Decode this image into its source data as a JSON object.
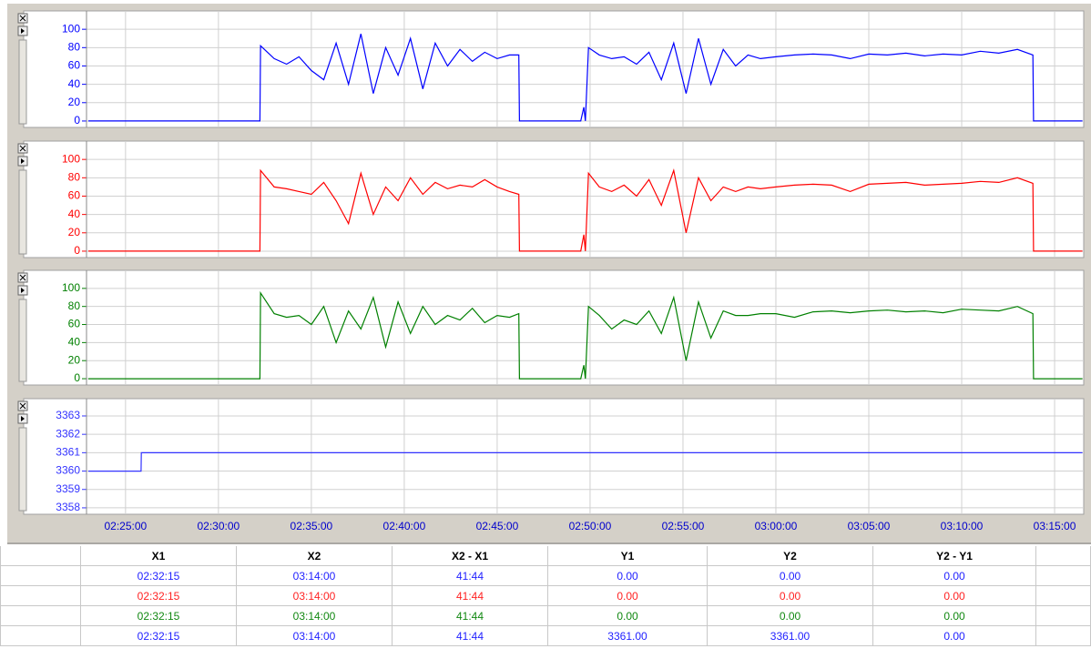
{
  "chart_data": [
    {
      "type": "line",
      "color": "#0000ff",
      "ylim": [
        -7,
        120
      ],
      "yticks": [
        0,
        20,
        40,
        60,
        80,
        100
      ],
      "x": [
        "02:23:00",
        "02:32:14",
        "02:32:16",
        "02:33:00",
        "02:33:40",
        "02:34:20",
        "02:35:00",
        "02:35:40",
        "02:36:20",
        "02:37:00",
        "02:37:40",
        "02:38:20",
        "02:39:00",
        "02:39:40",
        "02:40:20",
        "02:41:00",
        "02:41:40",
        "02:42:20",
        "02:43:00",
        "02:43:40",
        "02:44:20",
        "02:45:00",
        "02:45:40",
        "02:46:10",
        "02:46:12",
        "02:49:30",
        "02:49:40",
        "02:49:45",
        "02:49:55",
        "02:50:30",
        "02:51:10",
        "02:51:50",
        "02:52:30",
        "02:53:10",
        "02:53:50",
        "02:54:30",
        "02:55:10",
        "02:55:50",
        "02:56:30",
        "02:57:10",
        "02:57:50",
        "02:58:30",
        "02:59:10",
        "03:00:00",
        "03:01:00",
        "03:02:00",
        "03:03:00",
        "03:04:00",
        "03:05:00",
        "03:06:00",
        "03:07:00",
        "03:08:00",
        "03:09:00",
        "03:10:00",
        "03:11:00",
        "03:12:00",
        "03:13:00",
        "03:13:50",
        "03:13:52",
        "03:16:30"
      ],
      "values": [
        0,
        0,
        82,
        68,
        62,
        70,
        55,
        45,
        85,
        40,
        95,
        30,
        80,
        50,
        90,
        35,
        85,
        60,
        78,
        65,
        75,
        68,
        72,
        72,
        0,
        0,
        15,
        0,
        80,
        72,
        68,
        70,
        62,
        75,
        45,
        85,
        30,
        90,
        40,
        78,
        60,
        72,
        68,
        70,
        72,
        73,
        72,
        68,
        73,
        72,
        74,
        71,
        73,
        72,
        76,
        74,
        78,
        72,
        0,
        0
      ]
    },
    {
      "type": "line",
      "color": "#ff0000",
      "ylim": [
        -7,
        120
      ],
      "yticks": [
        0,
        20,
        40,
        60,
        80,
        100
      ],
      "x": [
        "02:23:00",
        "02:32:14",
        "02:32:16",
        "02:33:00",
        "02:33:40",
        "02:34:20",
        "02:35:00",
        "02:35:40",
        "02:36:20",
        "02:37:00",
        "02:37:40",
        "02:38:20",
        "02:39:00",
        "02:39:40",
        "02:40:20",
        "02:41:00",
        "02:41:40",
        "02:42:20",
        "02:43:00",
        "02:43:40",
        "02:44:20",
        "02:45:00",
        "02:45:40",
        "02:46:10",
        "02:46:12",
        "02:49:30",
        "02:49:40",
        "02:49:45",
        "02:49:55",
        "02:50:30",
        "02:51:10",
        "02:51:50",
        "02:52:30",
        "02:53:10",
        "02:53:50",
        "02:54:30",
        "02:55:10",
        "02:55:50",
        "02:56:30",
        "02:57:10",
        "02:57:50",
        "02:58:30",
        "02:59:10",
        "03:00:00",
        "03:01:00",
        "03:02:00",
        "03:03:00",
        "03:04:00",
        "03:05:00",
        "03:06:00",
        "03:07:00",
        "03:08:00",
        "03:09:00",
        "03:10:00",
        "03:11:00",
        "03:12:00",
        "03:13:00",
        "03:13:50",
        "03:13:52",
        "03:16:30"
      ],
      "values": [
        0,
        0,
        88,
        70,
        68,
        65,
        62,
        75,
        55,
        30,
        85,
        40,
        70,
        55,
        80,
        62,
        75,
        68,
        72,
        70,
        78,
        70,
        65,
        62,
        0,
        0,
        18,
        0,
        85,
        70,
        65,
        72,
        60,
        78,
        50,
        88,
        20,
        80,
        55,
        70,
        65,
        70,
        68,
        70,
        72,
        73,
        72,
        65,
        73,
        74,
        75,
        72,
        73,
        74,
        76,
        75,
        80,
        74,
        0,
        0
      ]
    },
    {
      "type": "line",
      "color": "#008000",
      "ylim": [
        -7,
        120
      ],
      "yticks": [
        0,
        20,
        40,
        60,
        80,
        100
      ],
      "x": [
        "02:23:00",
        "02:32:14",
        "02:32:16",
        "02:33:00",
        "02:33:40",
        "02:34:20",
        "02:35:00",
        "02:35:40",
        "02:36:20",
        "02:37:00",
        "02:37:40",
        "02:38:20",
        "02:39:00",
        "02:39:40",
        "02:40:20",
        "02:41:00",
        "02:41:40",
        "02:42:20",
        "02:43:00",
        "02:43:40",
        "02:44:20",
        "02:45:00",
        "02:45:40",
        "02:46:10",
        "02:46:12",
        "02:49:30",
        "02:49:40",
        "02:49:45",
        "02:49:55",
        "02:50:30",
        "02:51:10",
        "02:51:50",
        "02:52:30",
        "02:53:10",
        "02:53:50",
        "02:54:30",
        "02:55:10",
        "02:55:50",
        "02:56:30",
        "02:57:10",
        "02:57:50",
        "02:58:30",
        "02:59:10",
        "03:00:00",
        "03:01:00",
        "03:02:00",
        "03:03:00",
        "03:04:00",
        "03:05:00",
        "03:06:00",
        "03:07:00",
        "03:08:00",
        "03:09:00",
        "03:10:00",
        "03:11:00",
        "03:12:00",
        "03:13:00",
        "03:13:50",
        "03:13:52",
        "03:16:30"
      ],
      "values": [
        0,
        0,
        95,
        72,
        68,
        70,
        60,
        80,
        40,
        75,
        55,
        90,
        35,
        85,
        50,
        80,
        60,
        70,
        65,
        78,
        62,
        70,
        68,
        72,
        0,
        0,
        15,
        0,
        80,
        70,
        55,
        65,
        60,
        75,
        50,
        90,
        20,
        85,
        45,
        75,
        70,
        70,
        72,
        72,
        68,
        74,
        75,
        73,
        75,
        76,
        74,
        75,
        73,
        77,
        76,
        75,
        80,
        72,
        0,
        0
      ]
    },
    {
      "type": "line",
      "color": "#3333ff",
      "ylim": [
        3357.65,
        3363.94
      ],
      "yticks": [
        3358,
        3359,
        3360,
        3361,
        3362,
        3363
      ],
      "x": [
        "02:23:00",
        "02:25:50",
        "02:25:51",
        "03:16:30"
      ],
      "values": [
        3360,
        3360,
        3361,
        3361
      ],
      "xlim": [
        "02:22:54",
        "03:16:34"
      ],
      "xticks": [
        "02:25:00",
        "02:30:00",
        "02:35:00",
        "02:40:00",
        "02:45:00",
        "02:50:00",
        "02:55:00",
        "03:00:00",
        "03:05:00",
        "03:10:00",
        "03:15:00"
      ]
    }
  ],
  "table": {
    "headers": [
      "X1",
      "X2",
      "X2 - X1",
      "Y1",
      "Y2",
      "Y2 - Y1"
    ],
    "row_colors": [
      "#2222ff",
      "#ff2222",
      "#118811",
      "#2222ff"
    ],
    "rows": [
      [
        "02:32:15",
        "03:14:00",
        "41:44",
        "0.00",
        "0.00",
        "0.00"
      ],
      [
        "02:32:15",
        "03:14:00",
        "41:44",
        "0.00",
        "0.00",
        "0.00"
      ],
      [
        "02:32:15",
        "03:14:00",
        "41:44",
        "0.00",
        "0.00",
        "0.00"
      ],
      [
        "02:32:15",
        "03:14:00",
        "41:44",
        "3361.00",
        "3361.00",
        "0.00"
      ]
    ]
  }
}
